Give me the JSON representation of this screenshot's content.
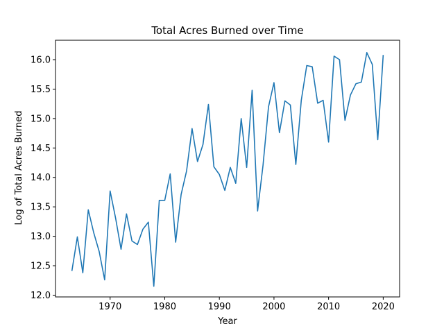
{
  "chart_data": {
    "type": "line",
    "title": "Total Acres Burned over Time",
    "xlabel": "Year",
    "ylabel": "Log of Total Acres Burned",
    "xlim": [
      1960,
      2023
    ],
    "ylim": [
      11.97,
      16.33
    ],
    "xticks": [
      1970,
      1980,
      1990,
      2000,
      2010,
      2020
    ],
    "yticks": [
      12.0,
      12.5,
      13.0,
      13.5,
      14.0,
      14.5,
      15.0,
      15.5,
      16.0
    ],
    "ytick_labels": [
      "12.0",
      "12.5",
      "13.0",
      "13.5",
      "14.0",
      "14.5",
      "15.0",
      "15.5",
      "16.0"
    ],
    "grid": false,
    "line_color": "#1f77b4",
    "series": [
      {
        "x": [
          1963,
          1964,
          1965,
          1966,
          1967,
          1968,
          1969,
          1970,
          1971,
          1972,
          1973,
          1974,
          1975,
          1976,
          1977,
          1978,
          1979,
          1980,
          1981,
          1982,
          1983,
          1984,
          1985,
          1986,
          1987,
          1988,
          1989,
          1990,
          1991,
          1992,
          1993,
          1994,
          1995,
          1996,
          1997,
          1998,
          1999,
          2000,
          2001,
          2002,
          2003,
          2004,
          2005,
          2006,
          2007,
          2008,
          2009,
          2010,
          2011,
          2012,
          2013,
          2014,
          2015,
          2016,
          2017,
          2018,
          2019,
          2020
        ],
        "y": [
          12.41,
          12.99,
          12.38,
          13.45,
          13.06,
          12.74,
          12.26,
          13.77,
          13.31,
          12.78,
          13.38,
          12.92,
          12.86,
          13.12,
          13.24,
          12.15,
          13.61,
          13.61,
          14.06,
          12.9,
          13.71,
          14.11,
          14.83,
          14.27,
          14.56,
          15.24,
          14.18,
          14.05,
          13.78,
          14.17,
          13.9,
          15.0,
          14.17,
          15.48,
          13.43,
          14.21,
          15.2,
          15.61,
          14.76,
          15.3,
          15.23,
          14.22,
          15.31,
          15.9,
          15.88,
          15.26,
          15.31,
          14.6,
          16.06,
          16.0,
          14.97,
          15.4,
          15.59,
          15.62,
          16.12,
          15.92,
          14.64,
          16.08
        ]
      }
    ]
  }
}
